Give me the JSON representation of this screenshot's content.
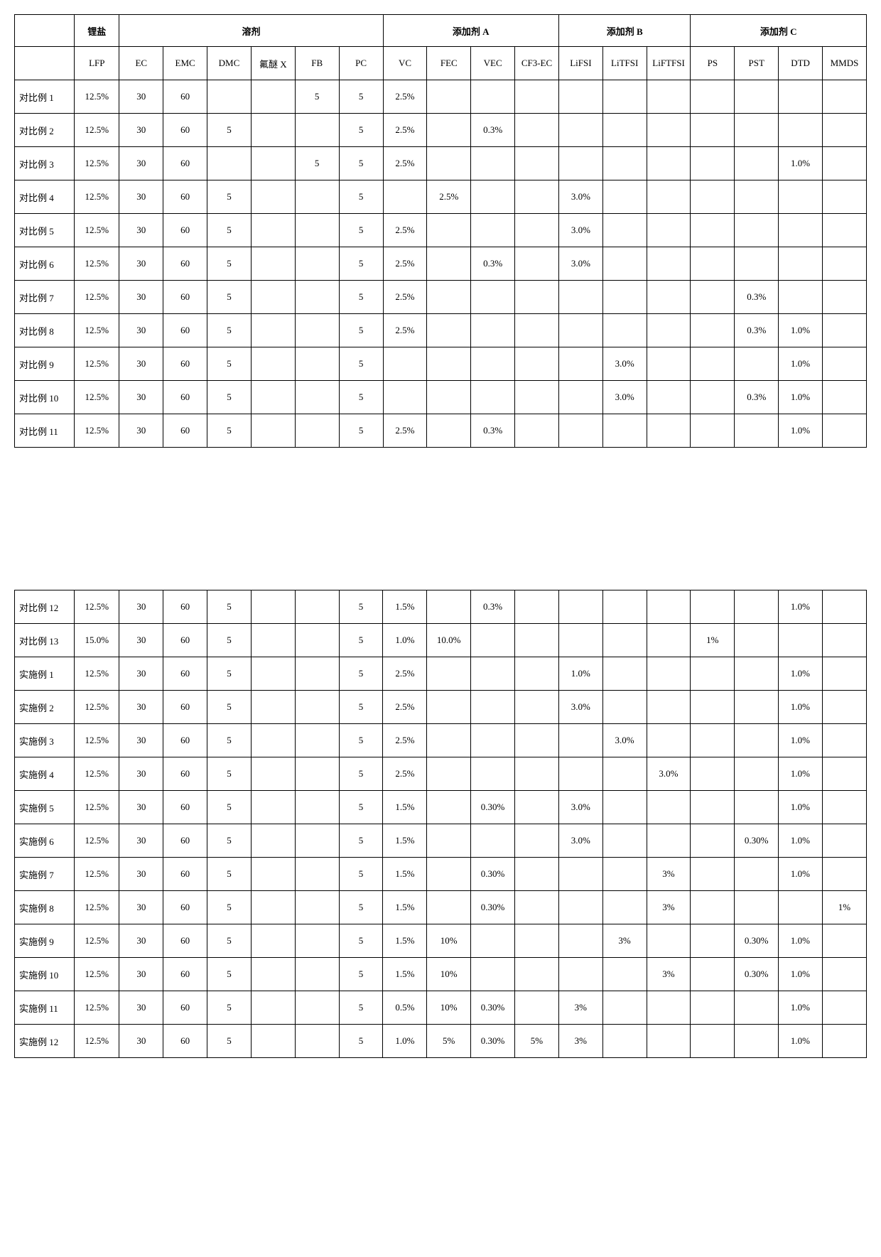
{
  "groupHeaders": [
    {
      "label": "",
      "colspan": 1
    },
    {
      "label": "锂盐",
      "colspan": 1
    },
    {
      "label": "溶剂",
      "colspan": 6
    },
    {
      "label": "添加剂 A",
      "colspan": 4
    },
    {
      "label": "添加剂 B",
      "colspan": 3
    },
    {
      "label": "添加剂 C",
      "colspan": 4
    }
  ],
  "subHeaders": [
    "",
    "LFP",
    "EC",
    "EMC",
    "DMC",
    "氟醚 X",
    "FB",
    "PC",
    "VC",
    "FEC",
    "VEC",
    "CF3-EC",
    "LiFSI",
    "LiTFSI",
    "LiFTFSI",
    "PS",
    "PST",
    "DTD",
    "MMDS"
  ],
  "rowsTop": [
    {
      "label": "对比例 1",
      "cells": [
        "12.5%",
        "30",
        "60",
        "",
        "",
        "5",
        "5",
        "2.5%",
        "",
        "",
        "",
        "",
        "",
        "",
        "",
        "",
        "",
        ""
      ]
    },
    {
      "label": "对比例 2",
      "cells": [
        "12.5%",
        "30",
        "60",
        "5",
        "",
        "",
        "5",
        "2.5%",
        "",
        "0.3%",
        "",
        "",
        "",
        "",
        "",
        "",
        "",
        ""
      ]
    },
    {
      "label": "对比例 3",
      "cells": [
        "12.5%",
        "30",
        "60",
        "",
        "",
        "5",
        "5",
        "2.5%",
        "",
        "",
        "",
        "",
        "",
        "",
        "",
        "",
        "1.0%",
        ""
      ]
    },
    {
      "label": "对比例 4",
      "cells": [
        "12.5%",
        "30",
        "60",
        "5",
        "",
        "",
        "5",
        "",
        "2.5%",
        "",
        "",
        "3.0%",
        "",
        "",
        "",
        "",
        "",
        ""
      ]
    },
    {
      "label": "对比例 5",
      "cells": [
        "12.5%",
        "30",
        "60",
        "5",
        "",
        "",
        "5",
        "2.5%",
        "",
        "",
        "",
        "3.0%",
        "",
        "",
        "",
        "",
        "",
        ""
      ]
    },
    {
      "label": "对比例 6",
      "cells": [
        "12.5%",
        "30",
        "60",
        "5",
        "",
        "",
        "5",
        "2.5%",
        "",
        "0.3%",
        "",
        "3.0%",
        "",
        "",
        "",
        "",
        "",
        ""
      ]
    },
    {
      "label": "对比例 7",
      "cells": [
        "12.5%",
        "30",
        "60",
        "5",
        "",
        "",
        "5",
        "2.5%",
        "",
        "",
        "",
        "",
        "",
        "",
        "",
        "0.3%",
        "",
        ""
      ]
    },
    {
      "label": "对比例 8",
      "cells": [
        "12.5%",
        "30",
        "60",
        "5",
        "",
        "",
        "5",
        "2.5%",
        "",
        "",
        "",
        "",
        "",
        "",
        "",
        "0.3%",
        "1.0%",
        ""
      ]
    },
    {
      "label": "对比例 9",
      "cells": [
        "12.5%",
        "30",
        "60",
        "5",
        "",
        "",
        "5",
        "",
        "",
        "",
        "",
        "",
        "3.0%",
        "",
        "",
        "",
        "1.0%",
        ""
      ]
    },
    {
      "label": "对比例 10",
      "cells": [
        "12.5%",
        "30",
        "60",
        "5",
        "",
        "",
        "5",
        "",
        "",
        "",
        "",
        "",
        "3.0%",
        "",
        "",
        "0.3%",
        "1.0%",
        ""
      ]
    },
    {
      "label": "对比例 11",
      "cells": [
        "12.5%",
        "30",
        "60",
        "5",
        "",
        "",
        "5",
        "2.5%",
        "",
        "0.3%",
        "",
        "",
        "",
        "",
        "",
        "",
        "1.0%",
        ""
      ]
    }
  ],
  "rowsBottom": [
    {
      "label": "对比例 12",
      "cells": [
        "12.5%",
        "30",
        "60",
        "5",
        "",
        "",
        "5",
        "1.5%",
        "",
        "0.3%",
        "",
        "",
        "",
        "",
        "",
        "",
        "1.0%",
        ""
      ]
    },
    {
      "label": "对比例 13",
      "cells": [
        "15.0%",
        "30",
        "60",
        "5",
        "",
        "",
        "5",
        "1.0%",
        "10.0%",
        "",
        "",
        "",
        "",
        "",
        "1%",
        "",
        "",
        ""
      ]
    },
    {
      "label": "实施例 1",
      "cells": [
        "12.5%",
        "30",
        "60",
        "5",
        "",
        "",
        "5",
        "2.5%",
        "",
        "",
        "",
        "1.0%",
        "",
        "",
        "",
        "",
        "1.0%",
        ""
      ]
    },
    {
      "label": "实施例 2",
      "cells": [
        "12.5%",
        "30",
        "60",
        "5",
        "",
        "",
        "5",
        "2.5%",
        "",
        "",
        "",
        "3.0%",
        "",
        "",
        "",
        "",
        "1.0%",
        ""
      ]
    },
    {
      "label": "实施例 3",
      "cells": [
        "12.5%",
        "30",
        "60",
        "5",
        "",
        "",
        "5",
        "2.5%",
        "",
        "",
        "",
        "",
        "3.0%",
        "",
        "",
        "",
        "1.0%",
        ""
      ]
    },
    {
      "label": "实施例 4",
      "cells": [
        "12.5%",
        "30",
        "60",
        "5",
        "",
        "",
        "5",
        "2.5%",
        "",
        "",
        "",
        "",
        "",
        "3.0%",
        "",
        "",
        "1.0%",
        ""
      ]
    },
    {
      "label": "实施例 5",
      "cells": [
        "12.5%",
        "30",
        "60",
        "5",
        "",
        "",
        "5",
        "1.5%",
        "",
        "0.30%",
        "",
        "3.0%",
        "",
        "",
        "",
        "",
        "1.0%",
        ""
      ]
    },
    {
      "label": "实施例 6",
      "cells": [
        "12.5%",
        "30",
        "60",
        "5",
        "",
        "",
        "5",
        "1.5%",
        "",
        "",
        "",
        "3.0%",
        "",
        "",
        "",
        "0.30%",
        "1.0%",
        ""
      ]
    },
    {
      "label": "实施例 7",
      "cells": [
        "12.5%",
        "30",
        "60",
        "5",
        "",
        "",
        "5",
        "1.5%",
        "",
        "0.30%",
        "",
        "",
        "",
        "3%",
        "",
        "",
        "1.0%",
        ""
      ]
    },
    {
      "label": "实施例 8",
      "cells": [
        "12.5%",
        "30",
        "60",
        "5",
        "",
        "",
        "5",
        "1.5%",
        "",
        "0.30%",
        "",
        "",
        "",
        "3%",
        "",
        "",
        "",
        "1%"
      ]
    },
    {
      "label": "实施例 9",
      "cells": [
        "12.5%",
        "30",
        "60",
        "5",
        "",
        "",
        "5",
        "1.5%",
        "10%",
        "",
        "",
        "",
        "3%",
        "",
        "",
        "0.30%",
        "1.0%",
        ""
      ]
    },
    {
      "label": "实施例 10",
      "cells": [
        "12.5%",
        "30",
        "60",
        "5",
        "",
        "",
        "5",
        "1.5%",
        "10%",
        "",
        "",
        "",
        "",
        "3%",
        "",
        "0.30%",
        "1.0%",
        ""
      ]
    },
    {
      "label": "实施例 11",
      "cells": [
        "12.5%",
        "30",
        "60",
        "5",
        "",
        "",
        "5",
        "0.5%",
        "10%",
        "0.30%",
        "",
        "3%",
        "",
        "",
        "",
        "",
        "1.0%",
        ""
      ]
    },
    {
      "label": "实施例 12",
      "cells": [
        "12.5%",
        "30",
        "60",
        "5",
        "",
        "",
        "5",
        "1.0%",
        "5%",
        "0.30%",
        "5%",
        "3%",
        "",
        "",
        "",
        "",
        "1.0%",
        ""
      ]
    }
  ]
}
